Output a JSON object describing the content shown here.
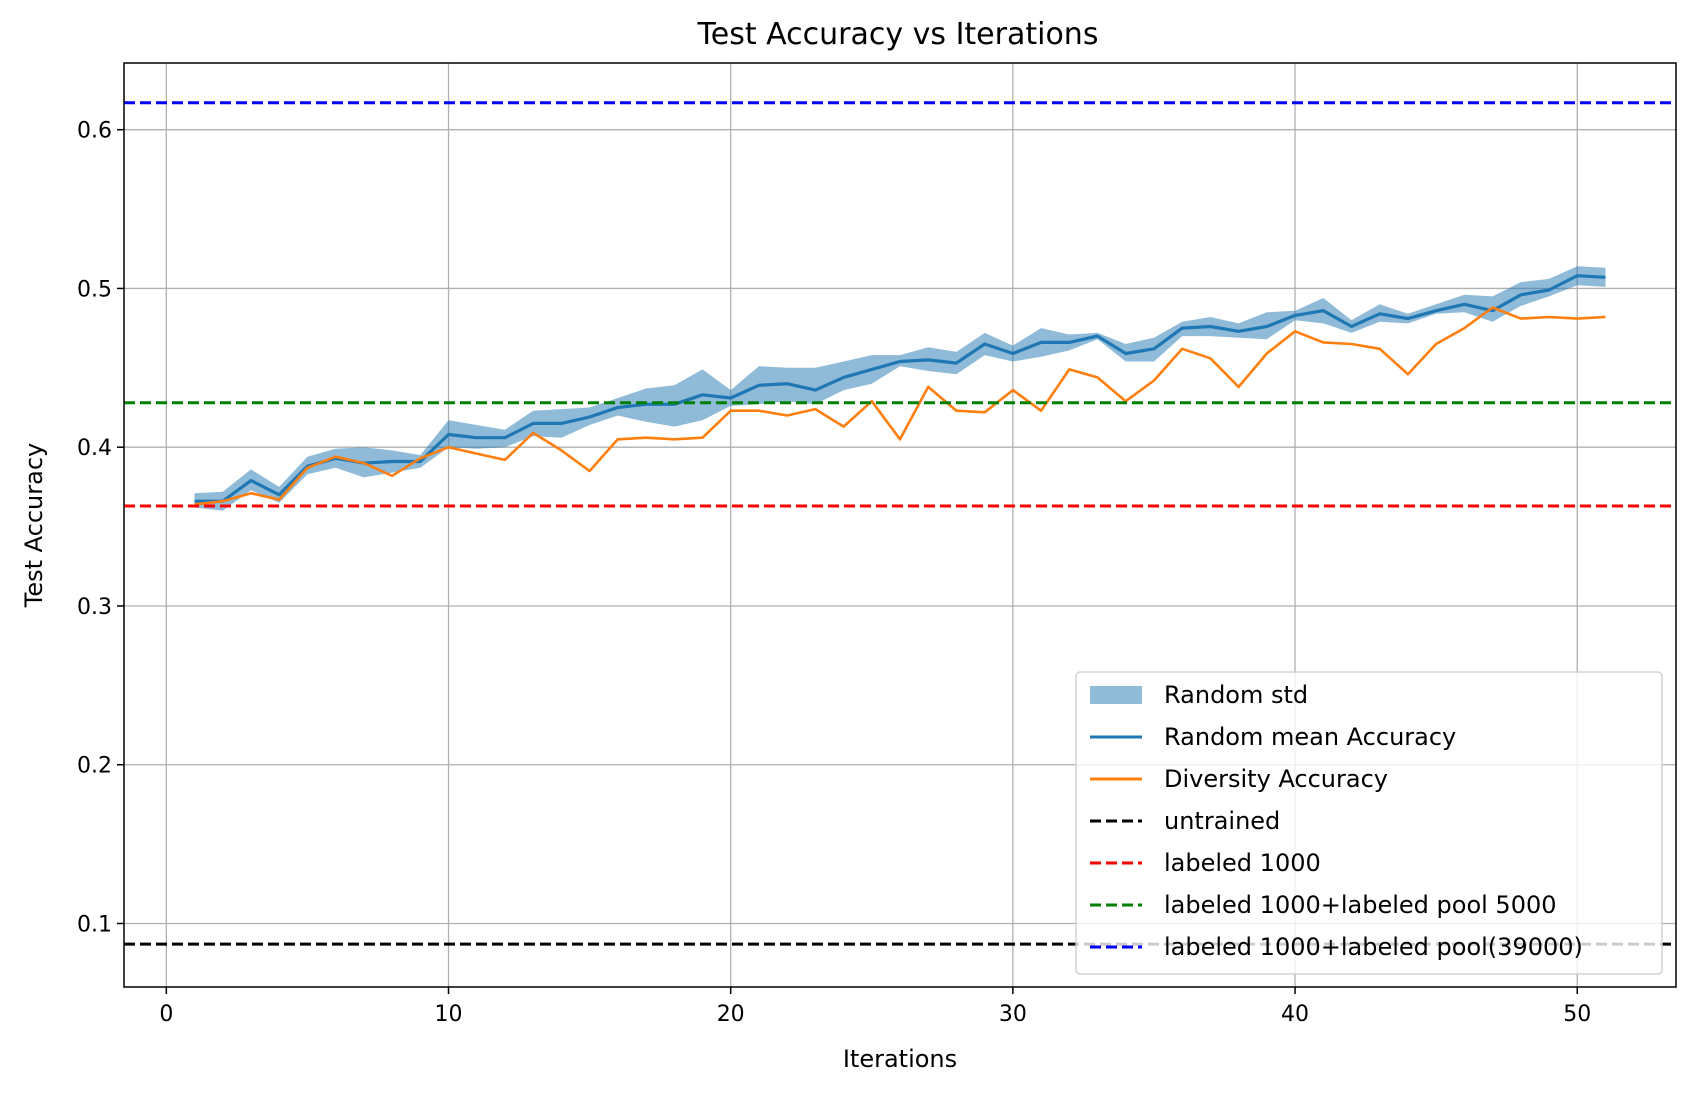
{
  "chart_data": {
    "type": "line",
    "title": "Test Accuracy vs Iterations",
    "xlabel": "Iterations",
    "ylabel": "Test Accuracy",
    "xlim": [
      -1.5,
      53.5
    ],
    "ylim": [
      0.06,
      0.642
    ],
    "xticks": [
      0,
      10,
      20,
      30,
      40,
      50
    ],
    "xtick_labels": [
      "0",
      "10",
      "20",
      "30",
      "40",
      "50"
    ],
    "yticks": [
      0.1,
      0.2,
      0.3,
      0.4,
      0.5,
      0.6
    ],
    "ytick_labels": [
      "0.1",
      "0.2",
      "0.3",
      "0.4",
      "0.5",
      "0.6"
    ],
    "grid": true,
    "legend_position": "lower-right",
    "x": [
      1,
      2,
      3,
      4,
      5,
      6,
      7,
      8,
      9,
      10,
      11,
      12,
      13,
      14,
      15,
      16,
      17,
      18,
      19,
      20,
      21,
      22,
      23,
      24,
      25,
      26,
      27,
      28,
      29,
      30,
      31,
      32,
      33,
      34,
      35,
      36,
      37,
      38,
      39,
      40,
      41,
      42,
      43,
      44,
      45,
      46,
      47,
      48,
      49,
      50,
      51
    ],
    "series": [
      {
        "name": "Random mean Accuracy",
        "kind": "line",
        "color": "#1f77b4",
        "values": [
          0.366,
          0.366,
          0.379,
          0.37,
          0.388,
          0.393,
          0.39,
          0.391,
          0.391,
          0.408,
          0.406,
          0.406,
          0.415,
          0.415,
          0.419,
          0.425,
          0.427,
          0.427,
          0.433,
          0.431,
          0.439,
          0.44,
          0.436,
          0.444,
          0.449,
          0.454,
          0.455,
          0.453,
          0.465,
          0.459,
          0.466,
          0.466,
          0.47,
          0.459,
          0.462,
          0.475,
          0.476,
          0.473,
          0.476,
          0.483,
          0.486,
          0.476,
          0.484,
          0.481,
          0.486,
          0.49,
          0.486,
          0.496,
          0.499,
          0.508,
          0.507
        ]
      },
      {
        "name": "Diversity Accuracy",
        "kind": "line",
        "color": "#ff7f0e",
        "values": [
          0.364,
          0.366,
          0.371,
          0.367,
          0.387,
          0.394,
          0.39,
          0.382,
          0.393,
          0.4,
          0.396,
          0.392,
          0.409,
          0.398,
          0.385,
          0.405,
          0.406,
          0.405,
          0.406,
          0.423,
          0.423,
          0.42,
          0.424,
          0.413,
          0.429,
          0.405,
          0.438,
          0.423,
          0.422,
          0.436,
          0.423,
          0.449,
          0.444,
          0.429,
          0.442,
          0.462,
          0.456,
          0.438,
          0.459,
          0.473,
          0.466,
          0.465,
          0.462,
          0.446,
          0.465,
          0.475,
          0.488,
          0.481,
          0.482,
          0.481,
          0.482
        ]
      }
    ],
    "band": {
      "name": "Random std",
      "color": "#1f77b4",
      "opacity": 0.5,
      "lower": [
        0.362,
        0.36,
        0.373,
        0.365,
        0.383,
        0.387,
        0.381,
        0.384,
        0.387,
        0.4,
        0.399,
        0.4,
        0.407,
        0.406,
        0.414,
        0.42,
        0.416,
        0.413,
        0.417,
        0.426,
        0.427,
        0.429,
        0.427,
        0.436,
        0.44,
        0.451,
        0.448,
        0.446,
        0.458,
        0.454,
        0.457,
        0.461,
        0.468,
        0.454,
        0.454,
        0.47,
        0.47,
        0.469,
        0.468,
        0.48,
        0.478,
        0.472,
        0.479,
        0.478,
        0.484,
        0.485,
        0.479,
        0.489,
        0.495,
        0.502,
        0.501
      ],
      "upper": [
        0.371,
        0.372,
        0.386,
        0.375,
        0.394,
        0.399,
        0.4,
        0.398,
        0.395,
        0.417,
        0.414,
        0.411,
        0.423,
        0.424,
        0.425,
        0.431,
        0.437,
        0.439,
        0.449,
        0.436,
        0.451,
        0.45,
        0.45,
        0.454,
        0.458,
        0.458,
        0.463,
        0.46,
        0.472,
        0.464,
        0.475,
        0.471,
        0.472,
        0.465,
        0.469,
        0.479,
        0.482,
        0.478,
        0.485,
        0.486,
        0.494,
        0.48,
        0.49,
        0.484,
        0.49,
        0.496,
        0.495,
        0.504,
        0.506,
        0.514,
        0.513
      ]
    },
    "reference_lines": [
      {
        "name": "untrained",
        "y": 0.087,
        "color": "#000000"
      },
      {
        "name": "labeled 1000",
        "y": 0.363,
        "color": "#ff0000"
      },
      {
        "name": "labeled 1000+labeled pool 5000",
        "y": 0.428,
        "color": "#008000"
      },
      {
        "name": "labeled 1000+labeled pool(39000)",
        "y": 0.617,
        "color": "#0000ff"
      }
    ],
    "legend": [
      {
        "label": "Random std",
        "kind": "patch",
        "color": "#1f77b4"
      },
      {
        "label": "Random mean Accuracy",
        "kind": "line",
        "color": "#1f77b4"
      },
      {
        "label": "Diversity Accuracy",
        "kind": "line",
        "color": "#ff7f0e"
      },
      {
        "label": "untrained",
        "kind": "dash",
        "color": "#000000"
      },
      {
        "label": "labeled 1000",
        "kind": "dash",
        "color": "#ff0000"
      },
      {
        "label": "labeled 1000+labeled pool 5000",
        "kind": "dash",
        "color": "#008000"
      },
      {
        "label": "labeled 1000+labeled pool(39000)",
        "kind": "dash",
        "color": "#0000ff"
      }
    ]
  }
}
